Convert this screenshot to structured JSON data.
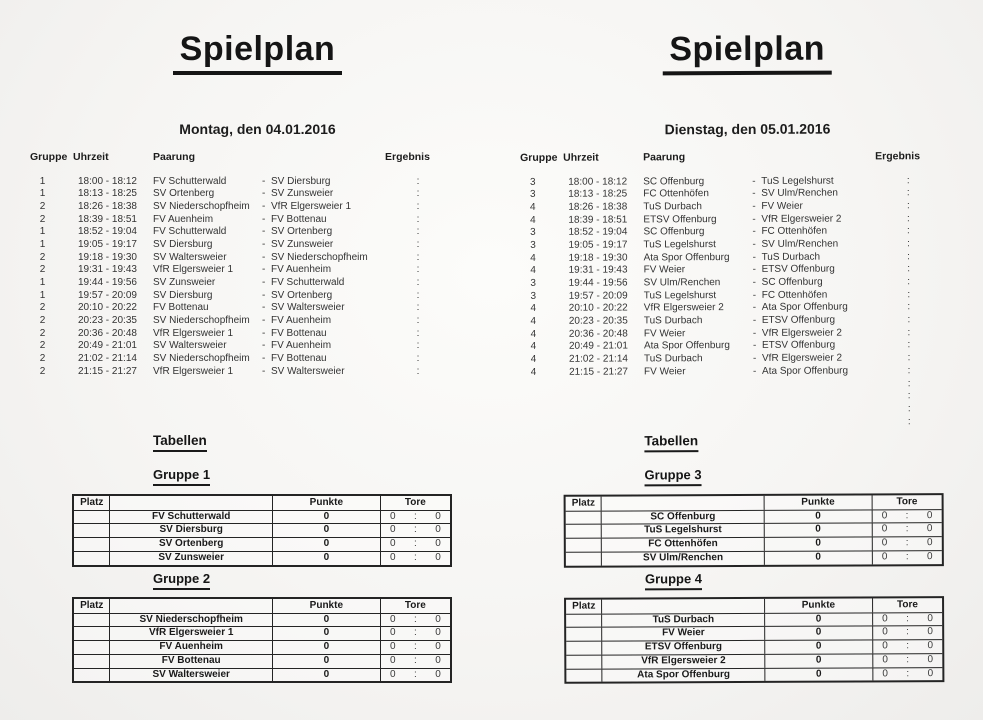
{
  "colors": {
    "ink": "#262626",
    "paper": "#f6f5f3"
  },
  "separators": {
    "vs": "-",
    "result": ":"
  },
  "pages": [
    {
      "title": "Spielplan",
      "date": "Montag, den 04.01.2016",
      "schedule": {
        "headers": {
          "gruppe": "Gruppe",
          "uhrzeit": "Uhrzeit",
          "paarung": "Paarung",
          "ergebnis": "Ergebnis"
        },
        "rows": [
          {
            "gruppe": "1",
            "zeit": "18:00 - 18:12",
            "heim": "FV Schutterwald",
            "gast": "SV Diersburg"
          },
          {
            "gruppe": "1",
            "zeit": "18:13 - 18:25",
            "heim": "SV Ortenberg",
            "gast": "SV Zunsweier"
          },
          {
            "gruppe": "2",
            "zeit": "18:26 - 18:38",
            "heim": "SV Niederschopfheim",
            "gast": "VfR Elgersweier 1"
          },
          {
            "gruppe": "2",
            "zeit": "18:39 - 18:51",
            "heim": "FV Auenheim",
            "gast": "FV Bottenau"
          },
          {
            "gruppe": "1",
            "zeit": "18:52 - 19:04",
            "heim": "FV Schutterwald",
            "gast": "SV Ortenberg"
          },
          {
            "gruppe": "1",
            "zeit": "19:05 - 19:17",
            "heim": "SV Diersburg",
            "gast": "SV Zunsweier"
          },
          {
            "gruppe": "2",
            "zeit": "19:18 - 19:30",
            "heim": "SV Waltersweier",
            "gast": "SV Niederschopfheim"
          },
          {
            "gruppe": "2",
            "zeit": "19:31 - 19:43",
            "heim": "VfR Elgersweier 1",
            "gast": "FV Auenheim"
          },
          {
            "gruppe": "1",
            "zeit": "19:44 - 19:56",
            "heim": "SV Zunsweier",
            "gast": "FV Schutterwald"
          },
          {
            "gruppe": "1",
            "zeit": "19:57 - 20:09",
            "heim": "SV Diersburg",
            "gast": "SV Ortenberg"
          },
          {
            "gruppe": "2",
            "zeit": "20:10 - 20:22",
            "heim": "FV Bottenau",
            "gast": "SV Waltersweier"
          },
          {
            "gruppe": "2",
            "zeit": "20:23 - 20:35",
            "heim": "SV Niederschopfheim",
            "gast": "FV Auenheim"
          },
          {
            "gruppe": "2",
            "zeit": "20:36 - 20:48",
            "heim": "VfR Elgersweier 1",
            "gast": "FV Bottenau"
          },
          {
            "gruppe": "2",
            "zeit": "20:49 - 21:01",
            "heim": "SV Waltersweier",
            "gast": "FV Auenheim"
          },
          {
            "gruppe": "2",
            "zeit": "21:02 - 21:14",
            "heim": "SV Niederschopfheim",
            "gast": "FV Bottenau"
          },
          {
            "gruppe": "2",
            "zeit": "21:15 - 21:27",
            "heim": "VfR Elgersweier 1",
            "gast": "SV Waltersweier"
          }
        ],
        "extra_results": []
      },
      "tabellen_heading": "Tabellen",
      "groups": [
        {
          "name": "Gruppe 1",
          "headers": {
            "platz": "Platz",
            "punkte": "Punkte",
            "tore": "Tore"
          },
          "teams": [
            {
              "team": "FV Schutterwald",
              "punkte": "0",
              "tore_heim": "0",
              "tore_gast": "0"
            },
            {
              "team": "SV Diersburg",
              "punkte": "0",
              "tore_heim": "0",
              "tore_gast": "0"
            },
            {
              "team": "SV Ortenberg",
              "punkte": "0",
              "tore_heim": "0",
              "tore_gast": "0"
            },
            {
              "team": "SV Zunsweier",
              "punkte": "0",
              "tore_heim": "0",
              "tore_gast": "0"
            }
          ]
        },
        {
          "name": "Gruppe 2",
          "headers": {
            "platz": "Platz",
            "punkte": "Punkte",
            "tore": "Tore"
          },
          "teams": [
            {
              "team": "SV Niederschopfheim",
              "punkte": "0",
              "tore_heim": "0",
              "tore_gast": "0"
            },
            {
              "team": "VfR Elgersweier 1",
              "punkte": "0",
              "tore_heim": "0",
              "tore_gast": "0"
            },
            {
              "team": "FV Auenheim",
              "punkte": "0",
              "tore_heim": "0",
              "tore_gast": "0"
            },
            {
              "team": "FV Bottenau",
              "punkte": "0",
              "tore_heim": "0",
              "tore_gast": "0"
            },
            {
              "team": "SV Waltersweier",
              "punkte": "0",
              "tore_heim": "0",
              "tore_gast": "0"
            }
          ]
        }
      ]
    },
    {
      "title": "Spielplan",
      "date": "Dienstag, den 05.01.2016",
      "schedule": {
        "headers": {
          "gruppe": "Gruppe",
          "uhrzeit": "Uhrzeit",
          "paarung": "Paarung",
          "ergebnis": "Ergebnis"
        },
        "rows": [
          {
            "gruppe": "3",
            "zeit": "18:00 - 18:12",
            "heim": "SC Offenburg",
            "gast": "TuS Legelshurst"
          },
          {
            "gruppe": "3",
            "zeit": "18:13 - 18:25",
            "heim": "FC Ottenhöfen",
            "gast": "SV Ulm/Renchen"
          },
          {
            "gruppe": "4",
            "zeit": "18:26 - 18:38",
            "heim": "TuS Durbach",
            "gast": "FV Weier"
          },
          {
            "gruppe": "4",
            "zeit": "18:39 - 18:51",
            "heim": "ETSV Offenburg",
            "gast": "VfR Elgersweier 2"
          },
          {
            "gruppe": "3",
            "zeit": "18:52 - 19:04",
            "heim": "SC Offenburg",
            "gast": "FC Ottenhöfen"
          },
          {
            "gruppe": "3",
            "zeit": "19:05 - 19:17",
            "heim": "TuS Legelshurst",
            "gast": "SV Ulm/Renchen"
          },
          {
            "gruppe": "4",
            "zeit": "19:18 - 19:30",
            "heim": "Ata Spor Offenburg",
            "gast": "TuS Durbach"
          },
          {
            "gruppe": "4",
            "zeit": "19:31 - 19:43",
            "heim": "FV Weier",
            "gast": "ETSV Offenburg"
          },
          {
            "gruppe": "3",
            "zeit": "19:44 - 19:56",
            "heim": "SV Ulm/Renchen",
            "gast": "SC Offenburg"
          },
          {
            "gruppe": "3",
            "zeit": "19:57 - 20:09",
            "heim": "TuS Legelshurst",
            "gast": "FC Ottenhöfen"
          },
          {
            "gruppe": "4",
            "zeit": "20:10 - 20:22",
            "heim": "VfR Elgersweier 2",
            "gast": "Ata Spor Offenburg"
          },
          {
            "gruppe": "4",
            "zeit": "20:23 - 20:35",
            "heim": "TuS Durbach",
            "gast": "ETSV Offenburg"
          },
          {
            "gruppe": "4",
            "zeit": "20:36 - 20:48",
            "heim": "FV Weier",
            "gast": "VfR Elgersweier 2"
          },
          {
            "gruppe": "4",
            "zeit": "20:49 - 21:01",
            "heim": "Ata Spor Offenburg",
            "gast": "ETSV Offenburg"
          },
          {
            "gruppe": "4",
            "zeit": "21:02 - 21:14",
            "heim": "TuS Durbach",
            "gast": "VfR Elgersweier 2"
          },
          {
            "gruppe": "4",
            "zeit": "21:15 - 21:27",
            "heim": "FV Weier",
            "gast": "Ata Spor Offenburg"
          }
        ],
        "extra_results": [
          ":",
          ":",
          ":",
          ":"
        ]
      },
      "tabellen_heading": "Tabellen",
      "groups": [
        {
          "name": "Gruppe 3",
          "headers": {
            "platz": "Platz",
            "punkte": "Punkte",
            "tore": "Tore"
          },
          "teams": [
            {
              "team": "SC Offenburg",
              "punkte": "0",
              "tore_heim": "0",
              "tore_gast": "0"
            },
            {
              "team": "TuS Legelshurst",
              "punkte": "0",
              "tore_heim": "0",
              "tore_gast": "0"
            },
            {
              "team": "FC Ottenhöfen",
              "punkte": "0",
              "tore_heim": "0",
              "tore_gast": "0"
            },
            {
              "team": "SV Ulm/Renchen",
              "punkte": "0",
              "tore_heim": "0",
              "tore_gast": "0"
            }
          ]
        },
        {
          "name": "Gruppe 4",
          "headers": {
            "platz": "Platz",
            "punkte": "Punkte",
            "tore": "Tore"
          },
          "teams": [
            {
              "team": "TuS Durbach",
              "punkte": "0",
              "tore_heim": "0",
              "tore_gast": "0"
            },
            {
              "team": "FV Weier",
              "punkte": "0",
              "tore_heim": "0",
              "tore_gast": "0"
            },
            {
              "team": "ETSV Offenburg",
              "punkte": "0",
              "tore_heim": "0",
              "tore_gast": "0"
            },
            {
              "team": "VfR Elgersweier 2",
              "punkte": "0",
              "tore_heim": "0",
              "tore_gast": "0"
            },
            {
              "team": "Ata Spor Offenburg",
              "punkte": "0",
              "tore_heim": "0",
              "tore_gast": "0"
            }
          ]
        }
      ]
    }
  ]
}
